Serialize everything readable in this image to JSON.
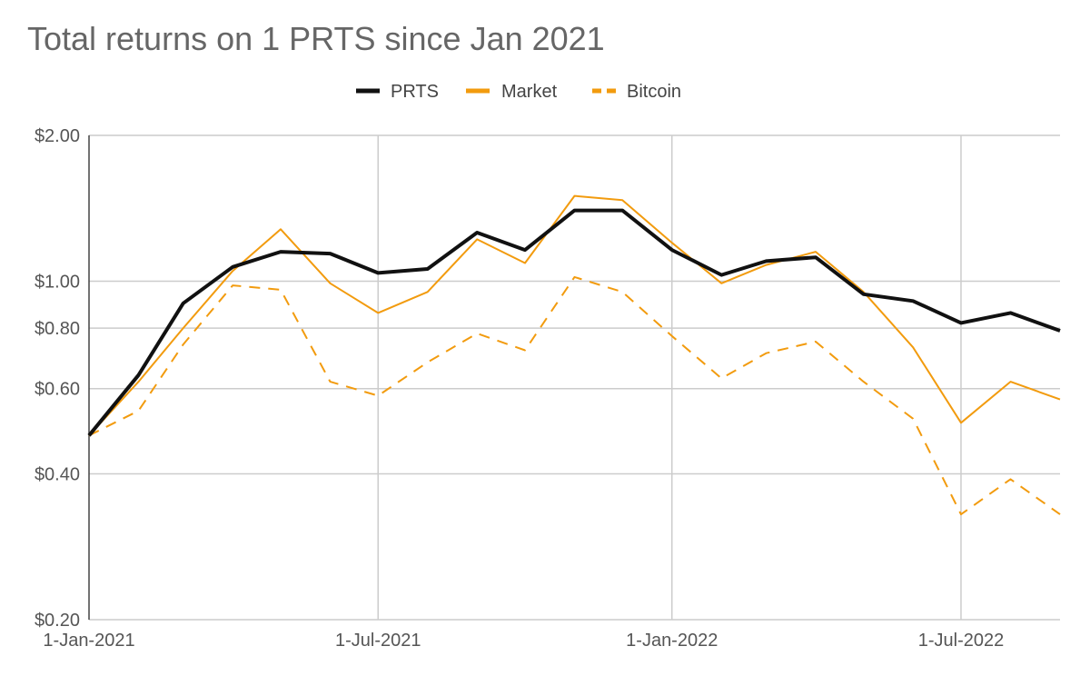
{
  "chart_data": {
    "type": "line",
    "title": "Total returns on 1 PRTS since Jan 2021",
    "xlabel": "",
    "ylabel": "",
    "y_scale": "log",
    "ylim": [
      0.2,
      2.0
    ],
    "y_ticks": [
      {
        "value": 2.0,
        "label": "$2.00"
      },
      {
        "value": 1.0,
        "label": "$1.00"
      },
      {
        "value": 0.8,
        "label": "$0.80"
      },
      {
        "value": 0.6,
        "label": "$0.60"
      },
      {
        "value": 0.4,
        "label": "$0.40"
      },
      {
        "value": 0.2,
        "label": "$0.20"
      }
    ],
    "x_ticks": [
      {
        "date": "2021-01-01",
        "label": "1-Jan-2021"
      },
      {
        "date": "2021-07-01",
        "label": "1-Jul-2021"
      },
      {
        "date": "2022-01-01",
        "label": "1-Jan-2022"
      },
      {
        "date": "2022-07-01",
        "label": "1-Jul-2022"
      }
    ],
    "x": [
      "2021-01-01",
      "2021-02-01",
      "2021-03-01",
      "2021-04-01",
      "2021-05-01",
      "2021-06-01",
      "2021-07-01",
      "2021-08-01",
      "2021-09-01",
      "2021-10-01",
      "2021-11-01",
      "2021-12-01",
      "2022-01-01",
      "2022-02-01",
      "2022-03-01",
      "2022-04-01",
      "2022-05-01",
      "2022-06-01",
      "2022-07-01",
      "2022-08-01",
      "2022-09-01"
    ],
    "grid": true,
    "legend_position": "top-center",
    "series": [
      {
        "name": "PRTS",
        "color": "#111111",
        "dash": "solid",
        "values": [
          0.48,
          0.64,
          0.9,
          1.07,
          1.15,
          1.14,
          1.04,
          1.06,
          1.26,
          1.16,
          1.4,
          1.4,
          1.16,
          1.03,
          1.1,
          1.12,
          0.94,
          0.91,
          0.82,
          0.86,
          0.79
        ]
      },
      {
        "name": "Market",
        "color": "#f29b0e",
        "dash": "solid",
        "values": [
          0.48,
          0.62,
          0.8,
          1.05,
          1.28,
          0.99,
          0.86,
          0.95,
          1.22,
          1.09,
          1.5,
          1.47,
          1.2,
          0.99,
          1.08,
          1.15,
          0.95,
          0.73,
          0.51,
          0.62,
          0.57
        ]
      },
      {
        "name": "Bitcoin",
        "color": "#f29b0e",
        "dash": "dashed",
        "values": [
          0.48,
          0.54,
          0.74,
          0.98,
          0.96,
          0.62,
          0.58,
          0.68,
          0.78,
          0.72,
          1.02,
          0.95,
          0.77,
          0.63,
          0.71,
          0.75,
          0.62,
          0.52,
          0.33,
          0.39,
          0.33
        ]
      }
    ]
  }
}
